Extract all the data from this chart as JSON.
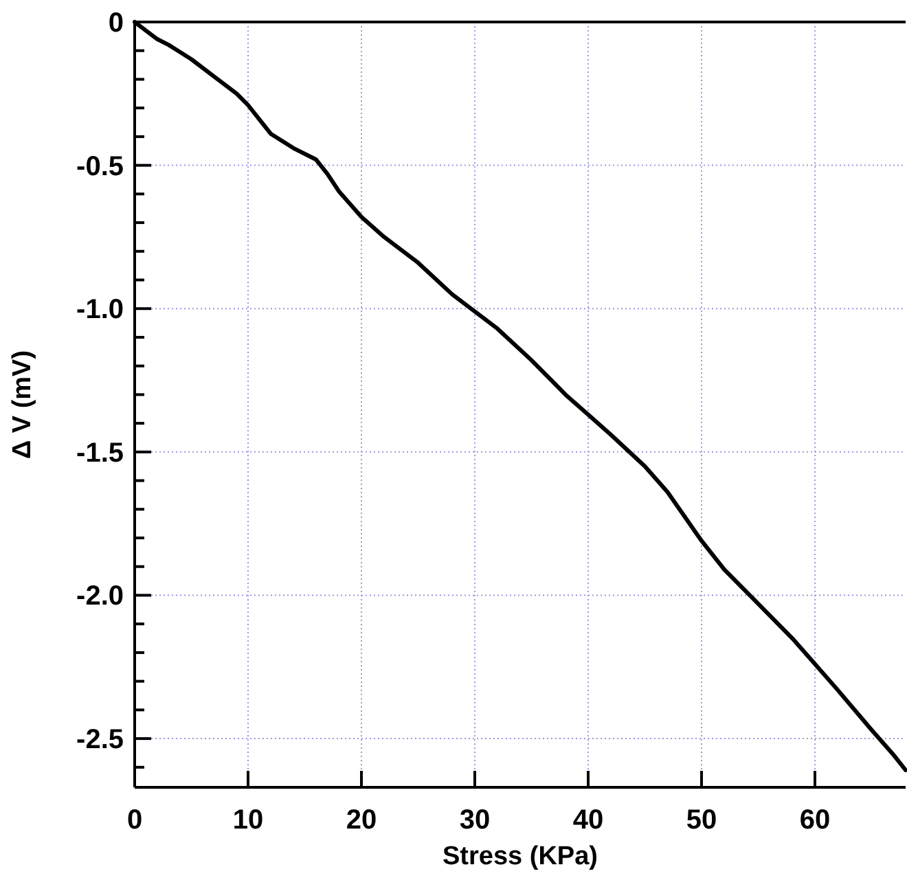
{
  "chart_data": {
    "type": "line",
    "xlabel": "Stress (KPa)",
    "ylabel": "Δ V (mV)",
    "x": [
      0,
      1,
      2,
      3,
      5,
      7,
      9,
      10,
      11,
      12,
      14,
      16,
      17,
      18,
      20,
      22,
      25,
      28,
      30,
      32,
      35,
      37,
      38,
      40,
      42,
      45,
      47,
      50,
      52,
      55,
      58,
      60,
      62,
      65,
      67,
      68
    ],
    "series": [
      {
        "color": "#000000",
        "values": [
          0,
          -0.03,
          -0.06,
          -0.08,
          -0.13,
          -0.19,
          -0.25,
          -0.29,
          -0.34,
          -0.39,
          -0.44,
          -0.48,
          -0.53,
          -0.59,
          -0.68,
          -0.75,
          -0.84,
          -0.95,
          -1.01,
          -1.07,
          -1.18,
          -1.26,
          -1.3,
          -1.37,
          -1.44,
          -1.55,
          -1.64,
          -1.81,
          -1.91,
          -2.03,
          -2.15,
          -2.24,
          -2.33,
          -2.47,
          -2.56,
          -2.61
        ]
      }
    ],
    "xlim": [
      0,
      68
    ],
    "xticks": [
      0,
      10,
      20,
      30,
      40,
      50,
      60
    ],
    "ylim": [
      -2.67,
      0
    ],
    "yticks": [
      0,
      {
        "value": -0.1,
        "label": null
      },
      {
        "value": -0.2,
        "label": null
      },
      {
        "value": -0.3,
        "label": null
      },
      {
        "value": -0.4,
        "label": null
      },
      {
        "value": -0.5,
        "label": "-0.5"
      },
      {
        "value": -0.6,
        "label": null
      },
      {
        "value": -0.7,
        "label": null
      },
      {
        "value": -0.8,
        "label": null
      },
      {
        "value": -0.9,
        "label": null
      },
      {
        "value": -1.0,
        "label": "-1.0"
      },
      {
        "value": -1.1,
        "label": null
      },
      {
        "value": -1.2,
        "label": null
      },
      {
        "value": -1.3,
        "label": null
      },
      {
        "value": -1.4,
        "label": null
      },
      {
        "value": -1.5,
        "label": "-1.5"
      },
      {
        "value": -1.6,
        "label": null
      },
      {
        "value": -1.7,
        "label": null
      },
      {
        "value": -1.8,
        "label": null
      },
      {
        "value": -1.9,
        "label": null
      },
      {
        "value": -2.0,
        "label": "-2.0"
      },
      {
        "value": -2.1,
        "label": null
      },
      {
        "value": -2.2,
        "label": null
      },
      {
        "value": -2.3,
        "label": null
      },
      {
        "value": -2.4,
        "label": null
      },
      {
        "value": -2.5,
        "label": "-2.5"
      },
      {
        "value": -2.6,
        "label": null
      }
    ],
    "grid": true,
    "line_style": "solid",
    "marker": "none"
  }
}
